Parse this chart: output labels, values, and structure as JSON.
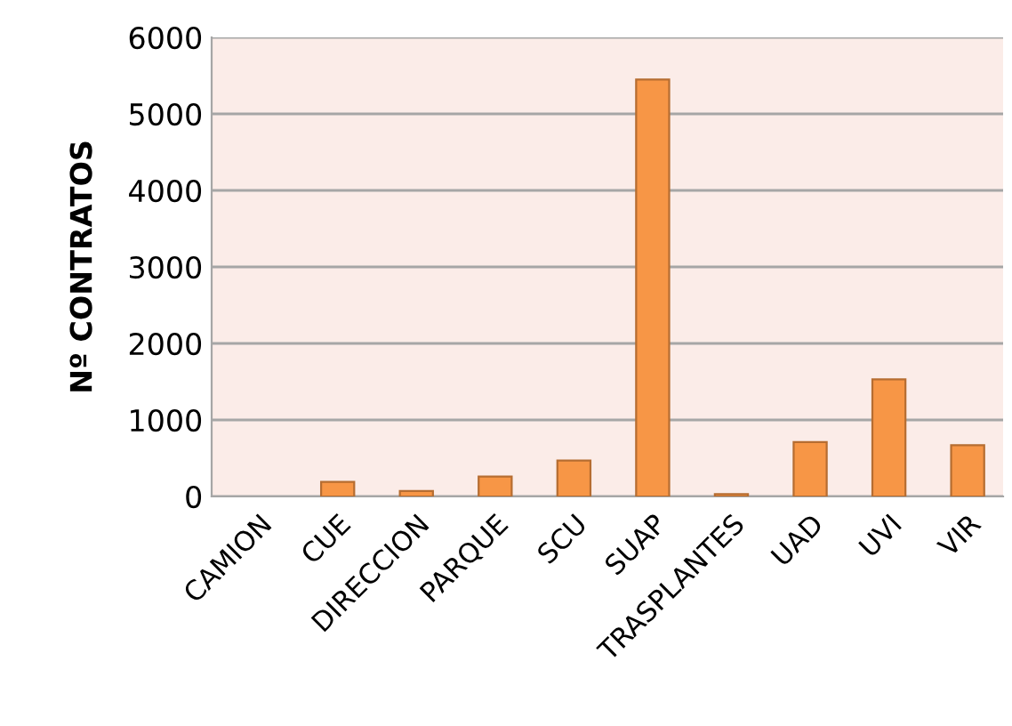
{
  "chart_data": {
    "type": "bar",
    "ylabel": "Nº CONTRATOS",
    "categories": [
      "CAMION",
      "CUE",
      "DIRECCION",
      "PARQUE",
      "SCU",
      "SUAP",
      "TRASPLANTES",
      "UAD",
      "UVI",
      "VIR"
    ],
    "values": [
      null,
      190,
      70,
      260,
      470,
      5450,
      30,
      710,
      1530,
      670
    ],
    "color": "#f79646",
    "ylim": [
      0,
      6000
    ],
    "yticks": [
      0,
      1000,
      2000,
      3000,
      4000,
      5000,
      6000
    ],
    "grid": "y",
    "legend": false
  }
}
